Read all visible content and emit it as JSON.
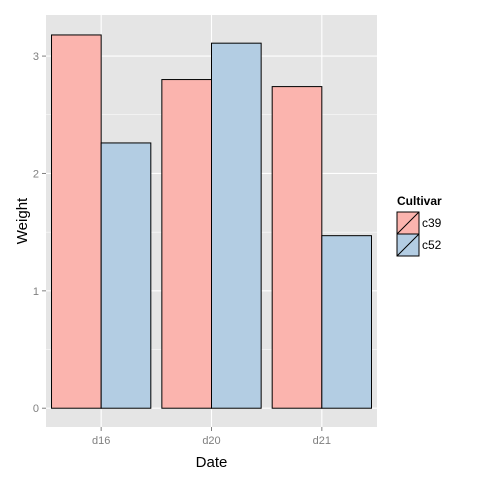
{
  "chart_data": {
    "type": "bar",
    "categories": [
      "d16",
      "d20",
      "d21"
    ],
    "series": [
      {
        "name": "c39",
        "values": [
          3.18,
          2.8,
          2.74
        ],
        "color": "#fbb4ae"
      },
      {
        "name": "c52",
        "values": [
          2.26,
          3.11,
          1.47
        ],
        "color": "#b3cde3"
      }
    ],
    "xlabel": "Date",
    "ylabel": "Weight",
    "ylim": [
      -0.16,
      3.35
    ],
    "yticks": [
      0,
      1,
      2,
      3
    ],
    "legend": {
      "title": "Cultivar",
      "position": "right"
    },
    "grid": true,
    "panel_background": "#e5e5e5",
    "grid_color": "#ffffff",
    "bar_outline_color": "#000000"
  }
}
